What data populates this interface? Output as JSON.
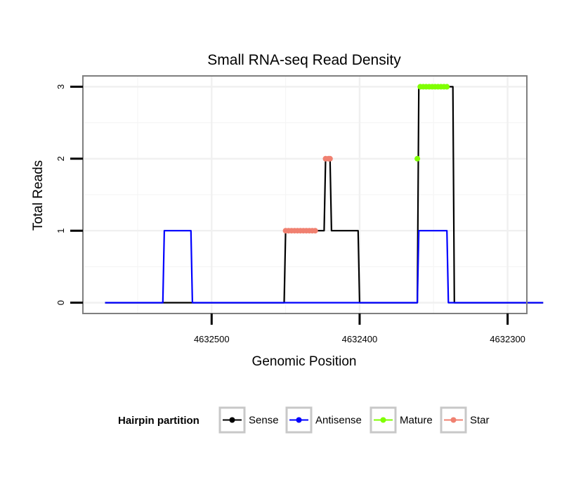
{
  "chart_data": {
    "type": "line",
    "title": "Small RNA-seq Read Density",
    "xlabel": "Genomic Position",
    "ylabel": "Total Reads",
    "x_reversed": true,
    "xlim": [
      4632587,
      4632287
    ],
    "ylim": [
      -0.15,
      3.15
    ],
    "xticks": [
      4632500,
      4632400,
      4632300
    ],
    "xtick_labels": [
      "4632500",
      "4632400",
      "4632300"
    ],
    "yticks": [
      0,
      1,
      2,
      3
    ],
    "ytick_labels": [
      "0",
      "1",
      "2",
      "3"
    ],
    "grid": true,
    "legend_position": "bottom",
    "legend_title": "Hairpin partition",
    "series": [
      {
        "name": "Sense",
        "kind": "line",
        "color": "#000000",
        "x": [
          4632572,
          4632451,
          4632450,
          4632430,
          4632429,
          4632424,
          4632423,
          4632420,
          4632419,
          4632416,
          4632415,
          4632401,
          4632400,
          4632361,
          4632360,
          4632341,
          4632340,
          4632337,
          4632336,
          4632276
        ],
        "y": [
          0,
          0,
          1,
          1,
          1,
          1,
          2,
          2,
          1,
          1,
          1,
          1,
          0,
          0,
          3,
          3,
          3,
          3,
          0,
          0
        ]
      },
      {
        "name": "Antisense",
        "kind": "line",
        "color": "#0000ff",
        "x": [
          4632572,
          4632533,
          4632532,
          4632514,
          4632513,
          4632361,
          4632360,
          4632341,
          4632340,
          4632276
        ],
        "y": [
          0,
          0,
          1,
          1,
          0,
          0,
          1,
          1,
          0,
          0
        ]
      },
      {
        "name": "Mature",
        "kind": "points",
        "color": "#7fff00",
        "x": [
          4632361,
          4632359,
          4632357,
          4632355,
          4632353,
          4632351,
          4632349,
          4632347,
          4632345,
          4632343,
          4632341
        ],
        "y": [
          2,
          3,
          3,
          3,
          3,
          3,
          3,
          3,
          3,
          3,
          3
        ]
      },
      {
        "name": "Star",
        "kind": "points",
        "color": "#f08070",
        "x": [
          4632450,
          4632448,
          4632446,
          4632444,
          4632442,
          4632440,
          4632438,
          4632436,
          4632434,
          4632432,
          4632430,
          4632423,
          4632421,
          4632420
        ],
        "y": [
          1,
          1,
          1,
          1,
          1,
          1,
          1,
          1,
          1,
          1,
          1,
          2,
          2,
          2
        ]
      }
    ]
  }
}
